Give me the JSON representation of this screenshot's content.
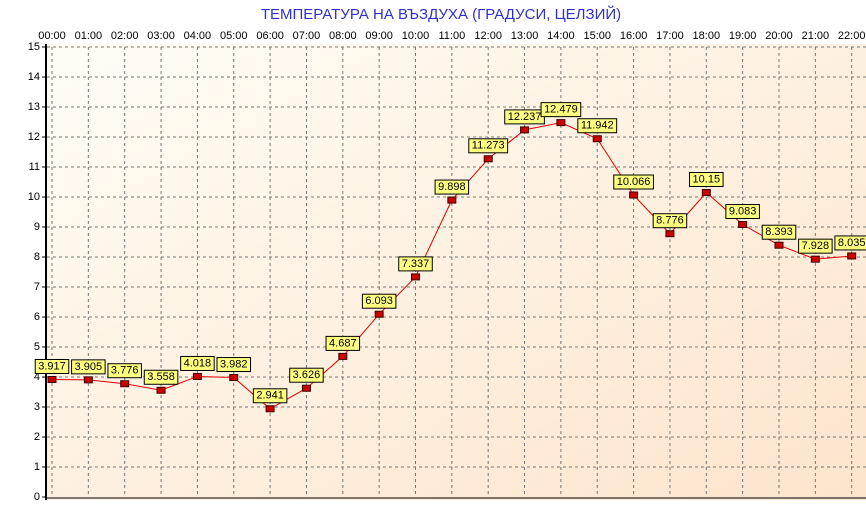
{
  "chart_data": {
    "type": "line",
    "title": "ТЕМПЕРАТУРА НА ВЪЗДУХА  (ГРАДУСИ, ЦЕЛЗИЙ)",
    "categories": [
      "00:00",
      "01:00",
      "02:00",
      "03:00",
      "04:00",
      "05:00",
      "06:00",
      "07:00",
      "08:00",
      "09:00",
      "10:00",
      "11:00",
      "12:00",
      "13:00",
      "14:00",
      "15:00",
      "16:00",
      "17:00",
      "18:00",
      "19:00",
      "20:00",
      "21:00",
      "22:00"
    ],
    "values": [
      3.917,
      3.905,
      3.776,
      3.558,
      4.018,
      3.982,
      2.941,
      3.626,
      4.687,
      6.093,
      7.337,
      9.898,
      11.273,
      12.237,
      12.479,
      11.942,
      10.066,
      8.776,
      10.15,
      9.083,
      8.393,
      7.928,
      8.035
    ],
    "color": "#e00000",
    "ylim": [
      0,
      15
    ],
    "yticks": [
      0,
      1,
      2,
      3,
      4,
      5,
      6,
      7,
      8,
      9,
      10,
      11,
      12,
      13,
      14,
      15
    ],
    "grid": true
  }
}
